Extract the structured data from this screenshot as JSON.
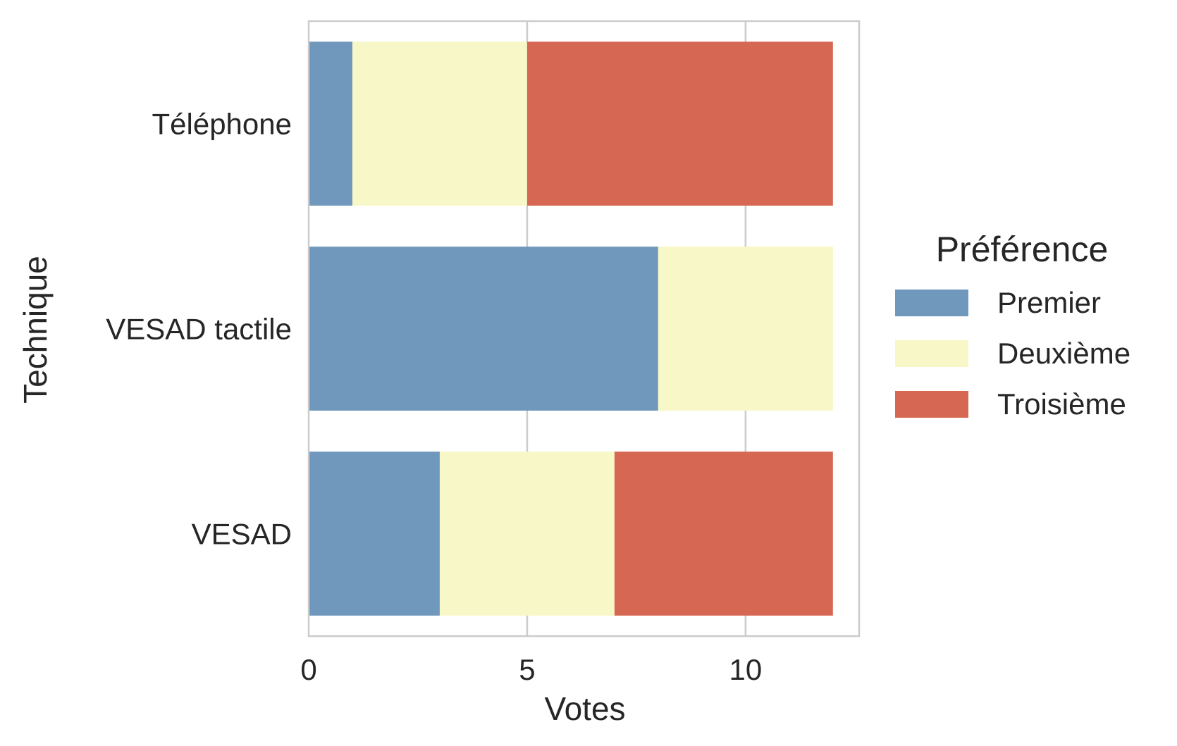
{
  "chart_data": {
    "type": "bar",
    "orientation": "horizontal",
    "stacked": true,
    "title": "",
    "xlabel": "Votes",
    "ylabel": "Technique",
    "categories": [
      "Téléphone",
      "VESAD tactile",
      "VESAD"
    ],
    "xlim": [
      0,
      12.6
    ],
    "xticks": [
      0,
      5,
      10
    ],
    "xtick_labels": [
      "0",
      "5",
      "10"
    ],
    "grid": "x-only",
    "series": [
      {
        "name": "Premier",
        "color": "#7098bc",
        "values": [
          1,
          8,
          3
        ]
      },
      {
        "name": "Deuxième",
        "color": "#f7f7c7",
        "values": [
          4,
          4,
          4
        ]
      },
      {
        "name": "Troisième",
        "color": "#d66752",
        "values": [
          7,
          0,
          5
        ]
      }
    ],
    "legend": {
      "title": "Préférence",
      "placement": "right-outside"
    }
  }
}
